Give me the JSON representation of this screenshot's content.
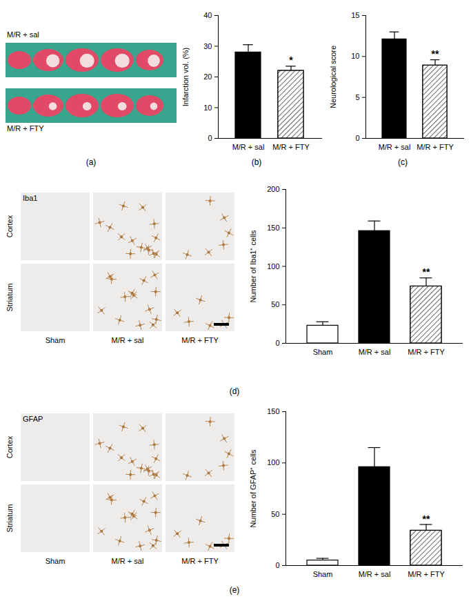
{
  "chart_data": [
    {
      "type": "bar",
      "caption": "(b)",
      "y_label": "Infarction vol. (%)",
      "categories": [
        "M/R + sal",
        "M/R + FTY"
      ],
      "values": [
        28,
        22
      ],
      "errors": [
        2.5,
        1.5
      ],
      "annotations": [
        null,
        "*"
      ],
      "colors": [
        "#000000",
        "#ffffff"
      ],
      "ylim": [
        0,
        40
      ],
      "yticks": [
        0,
        10,
        20,
        30,
        40
      ]
    },
    {
      "type": "bar",
      "caption": "(c)",
      "y_label": "Neurological score",
      "categories": [
        "M/R + sal",
        "M/R + FTY"
      ],
      "values": [
        12.1,
        8.9
      ],
      "errors": [
        0.9,
        0.7
      ],
      "annotations": [
        null,
        "**"
      ],
      "colors": [
        "#000000",
        "#ffffff"
      ],
      "ylim": [
        0,
        15
      ],
      "yticks": [
        0,
        5,
        10,
        15
      ]
    },
    {
      "type": "bar",
      "y_label": "Number of Iba1⁺ cells",
      "categories": [
        "Sham",
        "M/R + sal",
        "M/R + FTY"
      ],
      "values": [
        23,
        146,
        74
      ],
      "errors": [
        5,
        13,
        11
      ],
      "annotations": [
        null,
        null,
        "**"
      ],
      "colors": [
        "#ffffff",
        "#000000",
        "#ffffff"
      ],
      "ylim": [
        0,
        200
      ],
      "yticks": [
        0,
        50,
        100,
        150,
        200
      ]
    },
    {
      "type": "bar",
      "y_label": "Number of GFAP⁺ cells",
      "categories": [
        "Sham",
        "M/R + sal",
        "M/R + FTY"
      ],
      "values": [
        5,
        96,
        34
      ],
      "errors": [
        2,
        19,
        6
      ],
      "annotations": [
        null,
        null,
        "**"
      ],
      "colors": [
        "#ffffff",
        "#000000",
        "#ffffff"
      ],
      "ylim": [
        0,
        150
      ],
      "yticks": [
        0,
        50,
        100,
        150
      ]
    }
  ],
  "images": [
    {
      "caption": "(a)",
      "rows": [
        "M/R + sal",
        "M/R + FTY"
      ]
    },
    {
      "caption": "(d)",
      "stain": "Iba1",
      "rows": [
        "Cortex",
        "Striatum"
      ],
      "columns": [
        "Sham",
        "M/R + sal",
        "M/R + FTY"
      ]
    },
    {
      "caption": "(e)",
      "stain": "GFAP",
      "rows": [
        "Cortex",
        "Striatum"
      ],
      "columns": [
        "Sham",
        "M/R + sal",
        "M/R + FTY"
      ]
    }
  ]
}
